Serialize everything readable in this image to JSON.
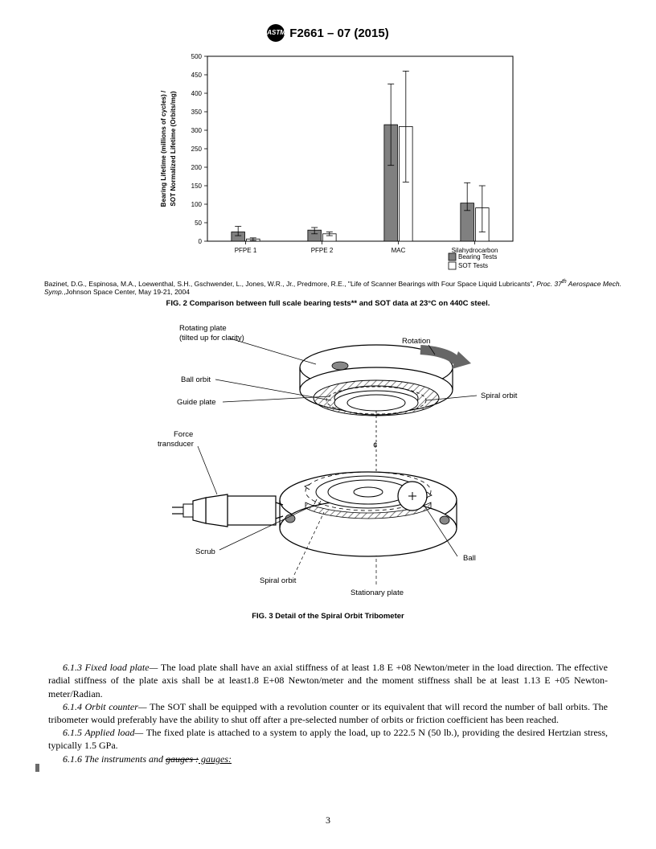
{
  "header": {
    "standard_id": "F2661 – 07 (2015)"
  },
  "chart": {
    "type": "bar",
    "ylabel_line1": "Bearing Lifetime (millions of cycles) /",
    "ylabel_line2": "SOT Normalized Lifetime (Orbits/mg)",
    "ylim": [
      0,
      500
    ],
    "ytick_step": 50,
    "yticks": [
      0,
      50,
      100,
      150,
      200,
      250,
      300,
      350,
      400,
      450,
      500
    ],
    "categories": [
      "PFPE 1",
      "PFPE 2",
      "MAC",
      "Silahydrocarbon"
    ],
    "series": [
      {
        "name": "Bearing Tests",
        "color": "#808080",
        "values": [
          25,
          30,
          315,
          103
        ],
        "err_lo": [
          10,
          10,
          110,
          20
        ],
        "err_hi": [
          15,
          7,
          110,
          55
        ]
      },
      {
        "name": "SOT Tests",
        "color": "#ffffff",
        "values": [
          6,
          20,
          310,
          90
        ],
        "err_lo": [
          4,
          5,
          150,
          65
        ],
        "err_hi": [
          3,
          5,
          150,
          60
        ]
      }
    ],
    "legend": {
      "position": "bottom-right",
      "items": [
        "Bearing Tests",
        "SOT Tests"
      ]
    },
    "axis_color": "#000000",
    "grid_color": "#000000",
    "background_color": "#ffffff",
    "bar_width": 0.35,
    "tick_fontsize": 8,
    "axis_fontsize": 8.2
  },
  "citation": {
    "authors": "Bazinet, D.G., Espinosa, M.A., Loewenthal, S.H., Gschwender, L., Jones, W.R., Jr., Predmore, R.E., \"Life of Scanner Bearings with Four Space Liquid Lubricants\", ",
    "proc": "Proc. 37",
    "sup": "th",
    "rest": " Aerospace Mech. Symp.",
    "tail": ",Johnson Space Center, May 19-21, 2004"
  },
  "fig2_caption": "FIG. 2 Comparison between full scale bearing tests** and SOT data at 23°C on 440C steel.",
  "diagram": {
    "labels": {
      "rotating_plate_l1": "Rotating plate",
      "rotating_plate_l2": "(tilted up for clarity)",
      "ball_orbit": "Ball orbit",
      "guide_plate": "Guide plate",
      "force_transducer_l1": "Force",
      "force_transducer_l2": "transducer",
      "scrub": "Scrub",
      "spiral_orbit_bottom": "Spiral orbit",
      "stationary_plate": "Stationary plate",
      "ball": "Ball",
      "spiral_orbit_top": "Spiral orbit",
      "rotation": "Rotation"
    },
    "line_color": "#000000",
    "fill_hatch": "#d0d0d0"
  },
  "fig3_caption": "FIG. 3 Detail of the Spiral Orbit Tribometer",
  "body": {
    "p613_head": "6.1.3 Fixed load plate— ",
    "p613": "The load plate shall have an axial stiffness of at least 1.8 E +08 Newton/meter in the load direction. The effective radial stiffness of the plate axis shall be at least1.8 E+08 Newton/meter and the moment stiffness shall be at least 1.13 E +05 Newton-meter/Radian.",
    "p614_head": "6.1.4 Orbit counter— ",
    "p614": "The SOT shall be equipped with a revolution counter or its equivalent that will record the number of ball orbits. The tribometer would preferably have the ability to shut off after a pre-selected number of orbits or friction coefficient has been reached.",
    "p615_head": "6.1.5 Applied load— ",
    "p615": "The fixed plate is attached to a system to apply the load, up to 222.5 N (50 lb.), providing the desired Hertzian stress, typically 1.5 GPa.",
    "p616_head": "6.1.6 The instruments and ",
    "p616_strike": "gauges :",
    "p616_under": " gauges:"
  },
  "page_number": "3"
}
